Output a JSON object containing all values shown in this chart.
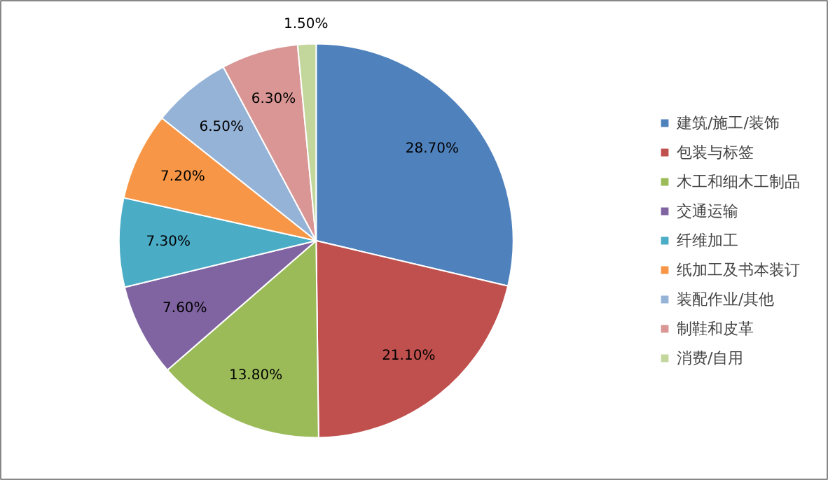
{
  "chart_data": {
    "type": "pie",
    "categories": [
      "建筑/施工/装饰",
      "包装与标签",
      "木工和细木工制品",
      "交通运输",
      "纤维加工",
      "纸加工及书本装订",
      "装配作业/其他",
      "制鞋和皮革",
      "消费/自用"
    ],
    "values": [
      28.7,
      21.1,
      13.8,
      7.6,
      7.3,
      7.2,
      6.5,
      6.3,
      1.5
    ],
    "colors": [
      "#4f81bd",
      "#c0504d",
      "#9bbb59",
      "#8064a2",
      "#4bacc6",
      "#f79646",
      "#95b3d7",
      "#d99694",
      "#c3d69b"
    ],
    "value_labels": [
      "28.70%",
      "21.10%",
      "13.80%",
      "7.60%",
      "7.30%",
      "7.20%",
      "6.50%",
      "6.30%",
      "1.50%"
    ],
    "legend": "right"
  }
}
